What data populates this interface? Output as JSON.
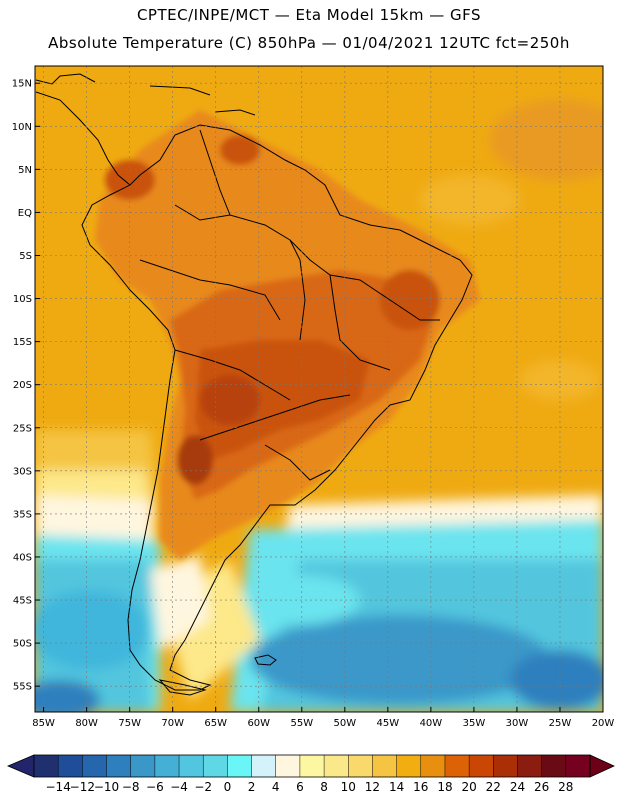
{
  "header": {
    "line1": "CPTEC/INPE/MCT —  Eta Model 15km — GFS",
    "line2": "Absolute Temperature (C) 850hPa — 01/04/2021 12UTC fct=250h"
  },
  "map": {
    "lat_labels": [
      "15N",
      "10N",
      "5N",
      "EQ",
      "5S",
      "10S",
      "15S",
      "20S",
      "25S",
      "30S",
      "35S",
      "40S",
      "45S",
      "50S",
      "55S"
    ],
    "lat_values": [
      15,
      10,
      5,
      0,
      -5,
      -10,
      -15,
      -20,
      -25,
      -30,
      -35,
      -40,
      -45,
      -50,
      -55
    ],
    "lon_labels": [
      "85W",
      "80W",
      "75W",
      "70W",
      "65W",
      "60W",
      "55W",
      "50W",
      "45W",
      "40W",
      "35W",
      "30W",
      "25W",
      "20W"
    ],
    "lon_values": [
      -85,
      -80,
      -75,
      -70,
      -65,
      -60,
      -55,
      -50,
      -45,
      -40,
      -35,
      -30,
      -25,
      -20
    ],
    "lat_range": [
      -58,
      17
    ],
    "lon_range": [
      -86,
      -20
    ],
    "grid": true
  },
  "colorbar": {
    "labels": [
      "-14",
      "-12",
      "-10",
      "-8",
      "-6",
      "-4",
      "-2",
      "0",
      "2",
      "4",
      "6",
      "8",
      "10",
      "12",
      "14",
      "16",
      "18",
      "20",
      "22",
      "24",
      "26",
      "28"
    ],
    "colors": [
      "#20306e",
      "#1f4d9a",
      "#2566ad",
      "#2d7fbd",
      "#3a98c9",
      "#45b0d6",
      "#52c6de",
      "#5fd8e6",
      "#6af6f6",
      "#d3f2fa",
      "#fff6df",
      "#fdf7a2",
      "#fbe88a",
      "#f9d86c",
      "#f4c442",
      "#f2ad10",
      "#e88f10",
      "#dd6105",
      "#c94605",
      "#aa2f07",
      "#8a1c10",
      "#6a0a14",
      "#76001f"
    ],
    "low_arrow_color": "#22256b",
    "high_arrow_color": "#6c0016"
  },
  "palette": {
    "ocean_warm": "#efaa12",
    "ocean_warmer": "#e89a20",
    "land_hot": "#d96712",
    "land_hottest": "#a83b10",
    "cool_band": "#fff6df",
    "cold_water": "#5ed8e6",
    "colder_water": "#3fb6dc",
    "coldest_water": "#2e7fc0",
    "coast": "#000000"
  }
}
